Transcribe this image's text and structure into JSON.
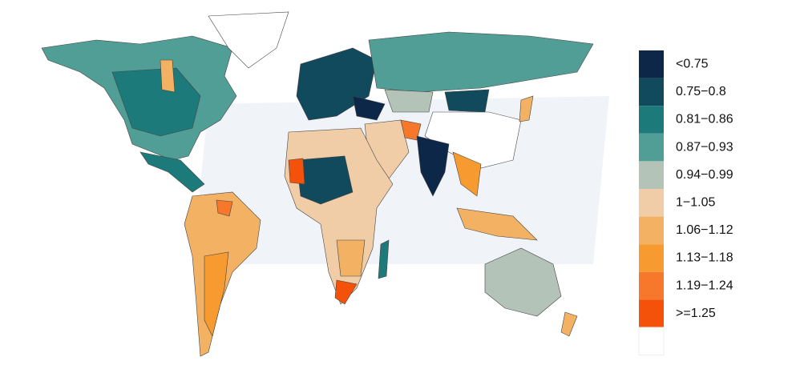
{
  "legend": {
    "items": [
      {
        "label": "<0.75",
        "color": "#0d2748"
      },
      {
        "label": "0.75−0.8",
        "color": "#114a5c"
      },
      {
        "label": "0.81−0.86",
        "color": "#1d7a7a"
      },
      {
        "label": "0.87−0.93",
        "color": "#519e97"
      },
      {
        "label": "0.94−0.99",
        "color": "#b4c3b8"
      },
      {
        "label": "1−1.05",
        "color": "#f0cda7"
      },
      {
        "label": "1.06−1.12",
        "color": "#f2b163"
      },
      {
        "label": "1.13−1.18",
        "color": "#f79a30"
      },
      {
        "label": "1.19−1.24",
        "color": "#f7782a"
      },
      {
        "label": ">=1.25",
        "color": "#f4520b"
      },
      {
        "color": "#ffffff"
      }
    ]
  }
}
